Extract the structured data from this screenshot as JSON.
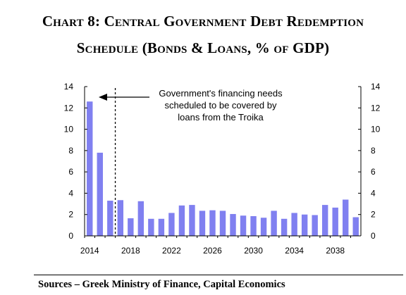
{
  "title": {
    "line1": "Chart 8: Central Government Debt Redemption",
    "line2": "Schedule (Bonds & Loans, % of GDP)"
  },
  "source": "Sources – Greek Ministry of Finance, Capital Economics",
  "colors": {
    "bar": "#8080F0",
    "axis": "#000000"
  },
  "chart_data": {
    "type": "bar",
    "x": [
      2014,
      2015,
      2016,
      2017,
      2018,
      2019,
      2020,
      2021,
      2022,
      2023,
      2024,
      2025,
      2026,
      2027,
      2028,
      2029,
      2030,
      2031,
      2032,
      2033,
      2034,
      2035,
      2036,
      2037,
      2038,
      2039,
      2040
    ],
    "values": [
      12.6,
      7.8,
      3.3,
      3.35,
      1.65,
      3.25,
      1.6,
      1.6,
      2.15,
      2.85,
      2.9,
      2.35,
      2.4,
      2.35,
      2.05,
      1.9,
      1.85,
      1.7,
      2.35,
      1.6,
      2.15,
      2.0,
      1.95,
      2.9,
      2.65,
      3.4,
      1.75
    ],
    "xticks": [
      "2014",
      "2018",
      "2022",
      "2026",
      "2030",
      "2034",
      "2038"
    ],
    "ylim": [
      0,
      14
    ],
    "yticks": [
      "0",
      "2",
      "4",
      "6",
      "8",
      "10",
      "12",
      "14"
    ],
    "dashed_line_x": 2016.5,
    "annotation": {
      "lines": [
        "Government's financing needs",
        "scheduled to be covered by",
        "loans from the Troika"
      ]
    },
    "title": "Chart 8: Central Government Debt Redemption Schedule (Bonds & Loans, % of GDP)",
    "xlabel": "",
    "ylabel": "",
    "grid": false,
    "legend": "none"
  }
}
